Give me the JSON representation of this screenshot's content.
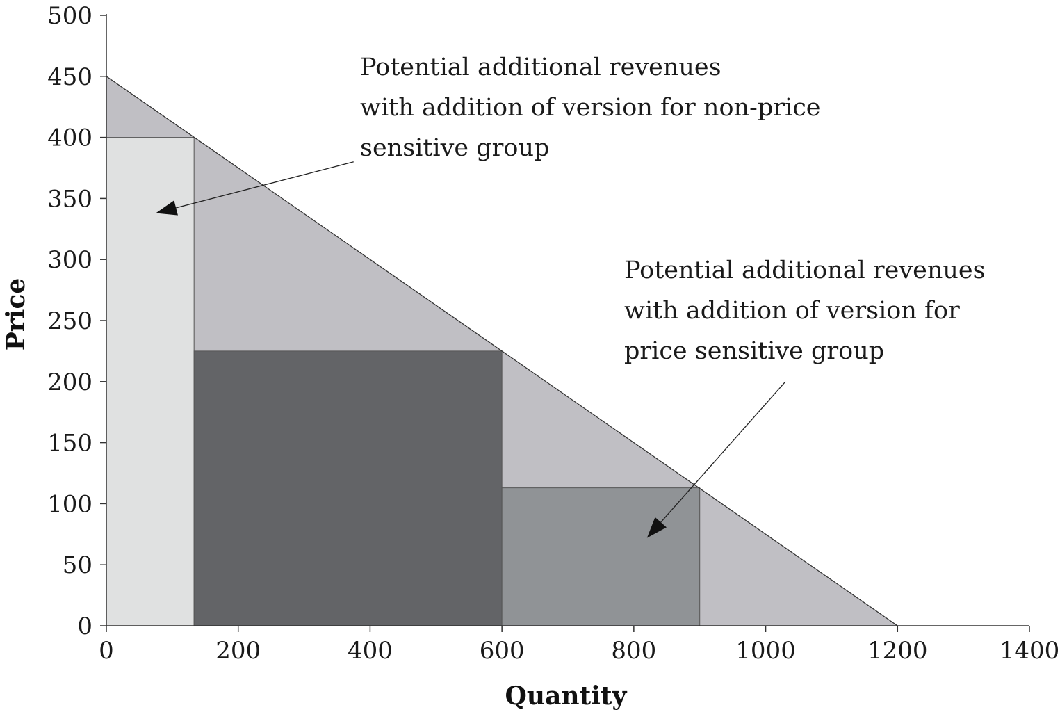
{
  "chart_data": {
    "type": "area",
    "title": "",
    "xlabel": "Quantity",
    "ylabel": "Price",
    "xlim": [
      0,
      1400
    ],
    "ylim": [
      0,
      500
    ],
    "x_ticks": [
      0,
      200,
      400,
      600,
      800,
      1000,
      1200,
      1400
    ],
    "y_ticks": [
      0,
      50,
      100,
      150,
      200,
      250,
      300,
      350,
      400,
      450,
      500
    ],
    "grid": false,
    "demand_curve": {
      "points": [
        [
          0,
          450
        ],
        [
          1200,
          0
        ]
      ]
    },
    "regions": [
      {
        "id": "total-revenue-triangle",
        "polygon": [
          [
            0,
            0
          ],
          [
            0,
            450
          ],
          [
            1200,
            0
          ]
        ],
        "color": "#c0bfc4"
      },
      {
        "id": "non-price-sensitive-version",
        "polygon": [
          [
            0,
            0
          ],
          [
            0,
            400
          ],
          [
            133,
            400
          ],
          [
            133,
            0
          ]
        ],
        "color": "#e0e1e1"
      },
      {
        "id": "single-price-revenue",
        "polygon": [
          [
            133,
            0
          ],
          [
            133,
            225
          ],
          [
            600,
            225
          ],
          [
            600,
            0
          ]
        ],
        "color": "#636467"
      },
      {
        "id": "price-sensitive-version",
        "polygon": [
          [
            600,
            0
          ],
          [
            600,
            113
          ],
          [
            900,
            113
          ],
          [
            900,
            0
          ]
        ],
        "color": "#909396"
      }
    ],
    "annotations": [
      {
        "id": "annotation-non-price",
        "lines": [
          "Potential additional revenues",
          "with addition of version for non-price",
          "sensitive group"
        ],
        "arrow_from": [
          375,
          380
        ],
        "arrow_to": [
          75,
          338
        ]
      },
      {
        "id": "annotation-price",
        "lines": [
          "Potential additional revenues",
          "with addition of version for",
          "price sensitive group"
        ],
        "arrow_from": [
          1030,
          200
        ],
        "arrow_to": [
          820,
          72
        ]
      }
    ]
  }
}
